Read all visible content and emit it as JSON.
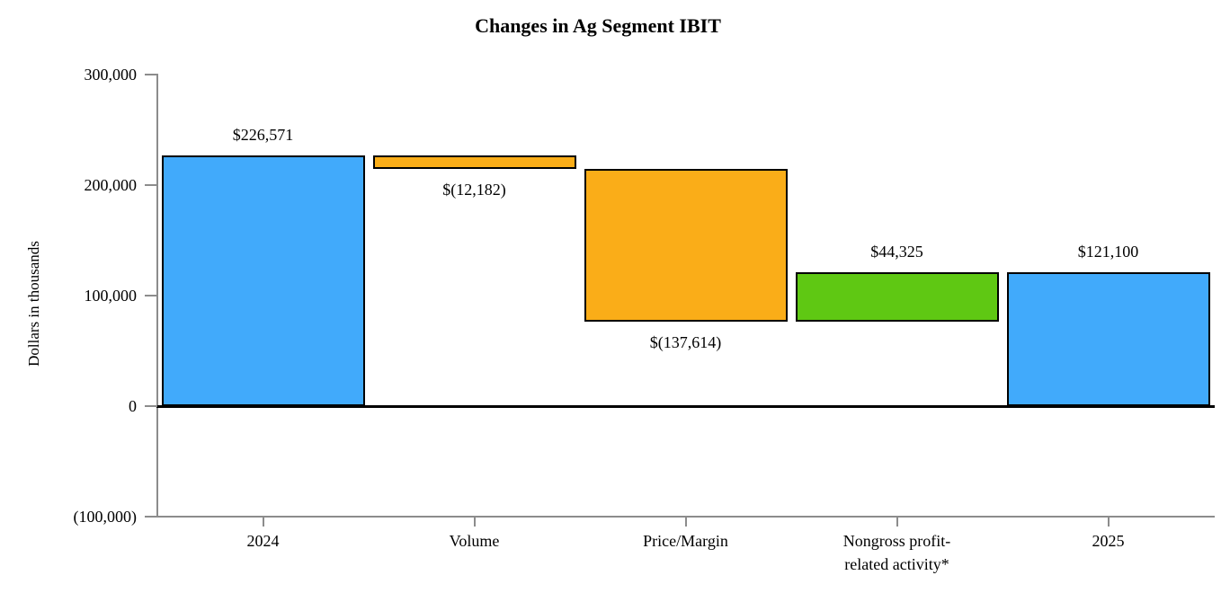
{
  "title": "Changes in Ag Segment IBIT",
  "y_axis": {
    "label": "Dollars in thousands",
    "ticks": [
      {
        "value": 300000,
        "label": "300,000"
      },
      {
        "value": 200000,
        "label": "200,000"
      },
      {
        "value": 100000,
        "label": "100,000"
      },
      {
        "value": 0,
        "label": "0"
      },
      {
        "value": -100000,
        "label": "(100,000)"
      }
    ]
  },
  "chart_data": {
    "type": "bar",
    "subtype": "waterfall",
    "title": "Changes in Ag Segment IBIT",
    "xlabel": "",
    "ylabel": "Dollars in thousands",
    "ylim": [
      -100000,
      300000
    ],
    "grid": false,
    "legend": false,
    "categories": [
      "2024",
      "Volume",
      "Price/Margin",
      "Nongross profit-\nrelated activity*",
      "2025"
    ],
    "values": [
      226571,
      -12182,
      -137614,
      44325,
      121100
    ],
    "bars": [
      {
        "category": "2024",
        "value_label": "$226,571",
        "value": 226571,
        "start": 0,
        "end": 226571,
        "color": "#41aafb",
        "label_position": "above"
      },
      {
        "category": "Volume",
        "value_label": "$(12,182)",
        "value": -12182,
        "start": 214389,
        "end": 226571,
        "color": "#faad18",
        "label_position": "below"
      },
      {
        "category": "Price/Margin",
        "value_label": "$(137,614)",
        "value": -137614,
        "start": 76775,
        "end": 214389,
        "color": "#faad18",
        "label_position": "below"
      },
      {
        "category": "Nongross profit-\nrelated activity*",
        "value_label": "$44,325",
        "value": 44325,
        "start": 76775,
        "end": 121100,
        "color": "#5fc813",
        "label_position": "above"
      },
      {
        "category": "2025",
        "value_label": "$121,100",
        "value": 121100,
        "start": 0,
        "end": 121100,
        "color": "#41aafb",
        "label_position": "above"
      }
    ],
    "colors": {
      "total_blue": "#41aafb",
      "decrease_orange": "#faad18",
      "increase_green": "#5fc813",
      "bar_border": "#000000",
      "axis_gray": "#8c8c8c"
    }
  }
}
